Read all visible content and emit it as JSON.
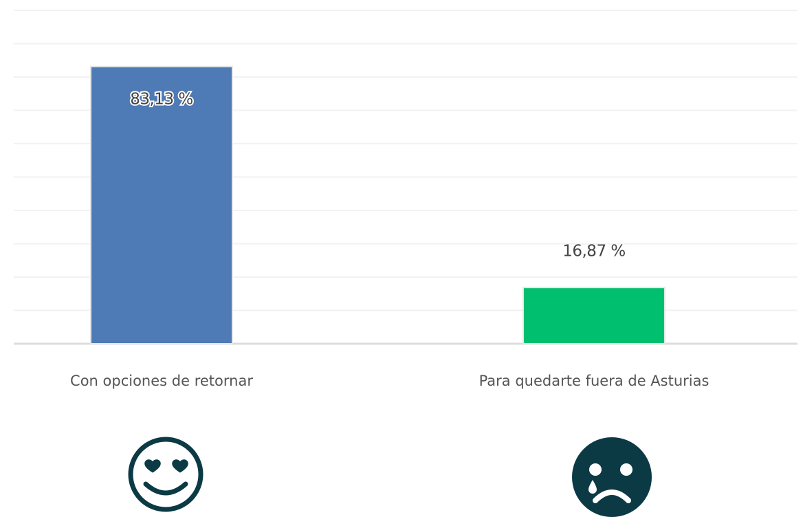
{
  "chart_data": {
    "type": "bar",
    "categories": [
      "Con opciones de retornar",
      "Para quedarte fuera de Asturias"
    ],
    "values": [
      83.13,
      16.87
    ],
    "value_labels": [
      "83,13 %",
      "16,87 %"
    ],
    "colors": [
      "#4e7ab5",
      "#00bf6f"
    ],
    "ylim": [
      0,
      100
    ],
    "yticks": [
      0,
      10,
      20,
      30,
      40,
      50,
      60,
      70,
      80,
      90,
      100
    ],
    "grid": true
  }
}
